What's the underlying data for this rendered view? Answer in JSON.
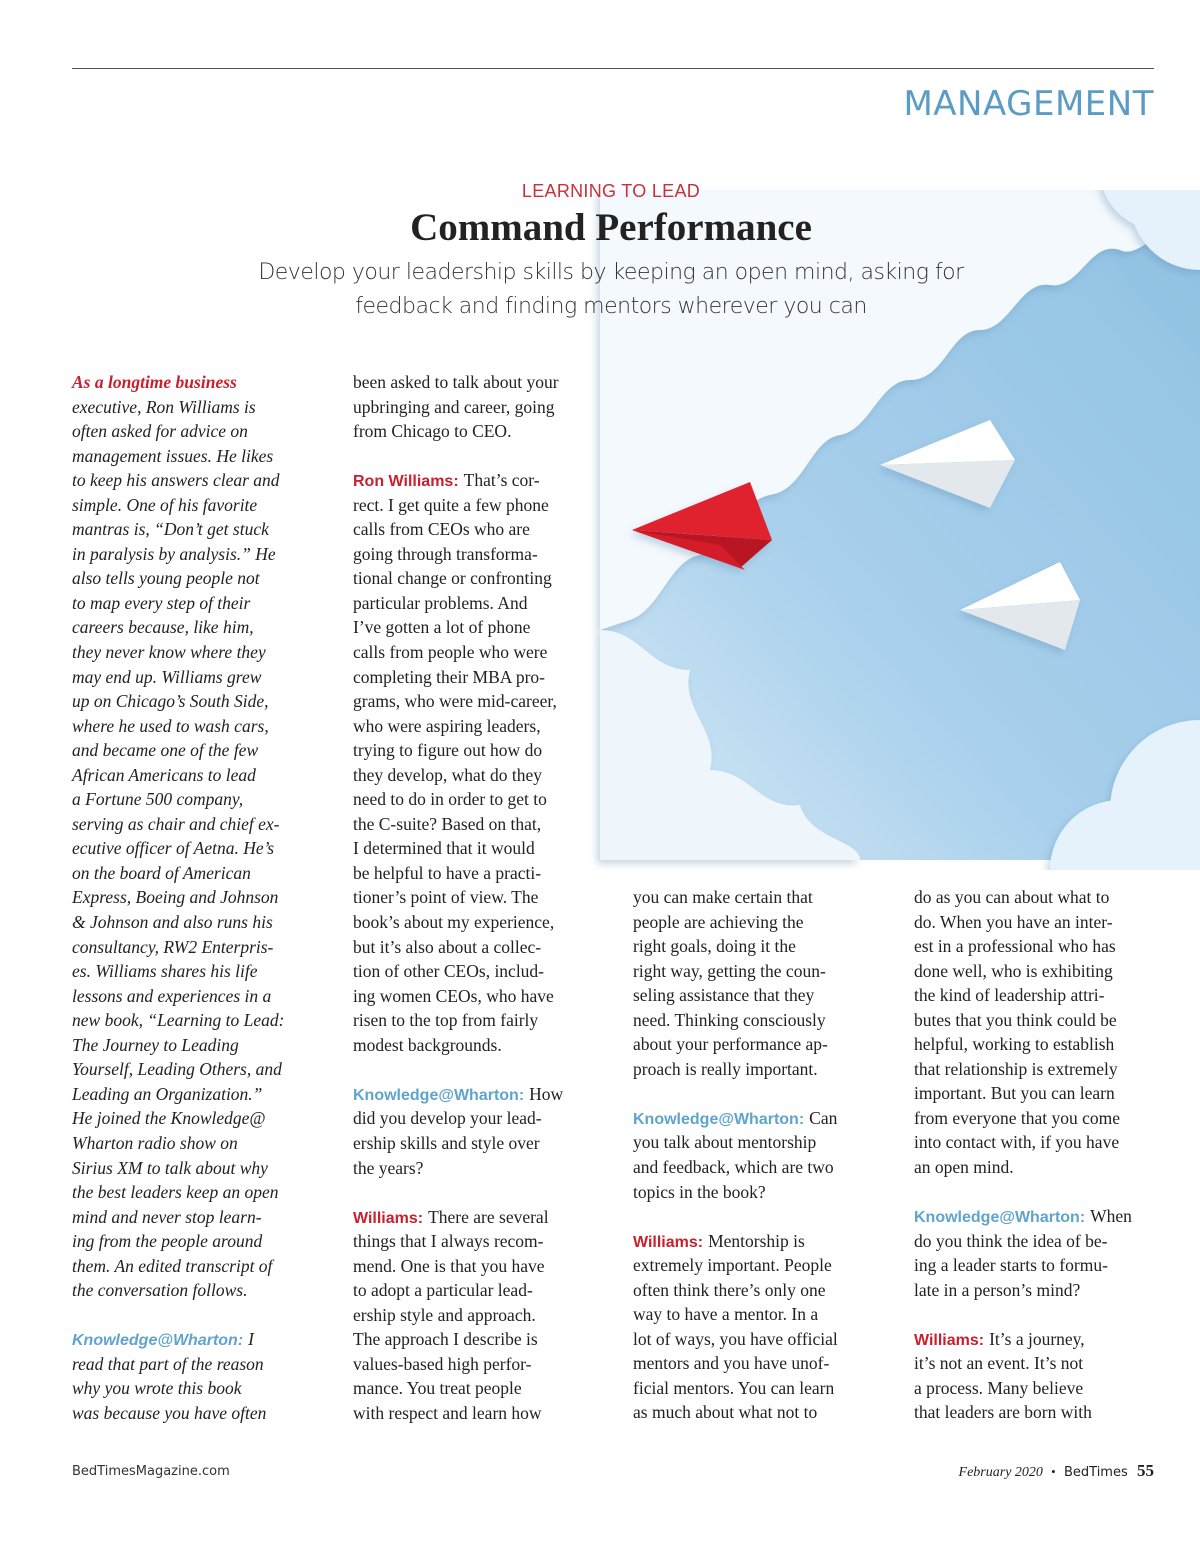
{
  "header": {
    "section": "MANAGEMENT",
    "kicker": "LEARNING TO LEAD",
    "title": "Command Performance",
    "subtitle": [
      "Develop your leadership skills by keeping an open mind, asking for",
      "feedback and finding mentors wherever you can"
    ]
  },
  "columns": [
    {
      "paragraphs": [
        {
          "lead": "As a longtime business",
          "lines": [
            "executive, Ron Williams is",
            "often asked for advice on",
            "management issues. He likes",
            "to keep his answers clear and",
            "simple. One of his favorite",
            "mantras is, “Don’t get stuck",
            "in paralysis by analysis.” He",
            "also tells young people not",
            "to map every step of their",
            "careers because, like him,",
            "they never know where they",
            "may end up. Williams grew",
            "up on Chicago’s South Side,",
            "where he used to wash cars,",
            "and became one of the few",
            "African Americans to lead",
            "a Fortune 500 company,",
            "serving as chair and chief ex-",
            "ecutive officer of Aetna. He’s",
            "on the board of American",
            "Express, Boeing and Johnson",
            "& Johnson and also runs his",
            "consultancy, RW2 Enterpris-",
            "es. Williams shares his life",
            "lessons and experiences in a",
            "new book, “Learning to Lead:",
            "The Journey to Leading",
            "Yourself, Leading Others, and",
            "Leading an Organization.”",
            "He joined the Knowledge@",
            "Wharton radio show on",
            "Sirius XM to talk about why",
            "the best leaders keep an open",
            "mind and never stop learn-",
            "ing from the people around",
            "them. An edited transcript of",
            "the conversation follows."
          ]
        },
        {
          "speaker": "Knowledge@Wharton:",
          "color": "#5fa4cc",
          "lines": [
            "I",
            "read that part of the reason",
            "why you wrote this book",
            "was because you have often"
          ]
        }
      ]
    },
    {
      "paragraphs": [
        {
          "lines": [
            "been asked to talk about your",
            "upbringing and career, going",
            "from Chicago to CEO."
          ]
        },
        {
          "speaker": "Ron Williams:",
          "color": "#c8202e",
          "lines": [
            "That’s cor-",
            "rect. I get quite a few phone",
            "calls from CEOs who are",
            "going through transforma-",
            "tional change or confronting",
            "particular problems. And",
            "I’ve gotten a lot of phone",
            "calls from people who were",
            "completing their MBA pro-",
            "grams, who were mid-career,",
            "who were aspiring leaders,",
            "trying to figure out how do",
            "they develop, what do they",
            "need to do in order to get to",
            "the C-suite? Based on that,",
            "I determined that it would",
            "be helpful to have a practi-",
            "tioner’s point of view. The",
            "book’s about my experience,",
            "but it’s also about a collec-",
            "tion of other CEOs, includ-",
            "ing women CEOs, who have",
            "risen to the top from fairly",
            "modest backgrounds."
          ]
        },
        {
          "speaker": "Knowledge@Wharton:",
          "color": "#5fa4cc",
          "lines": [
            "How",
            "did you develop your lead-",
            "ership skills and style over",
            "the years?"
          ]
        },
        {
          "speaker": "Williams:",
          "color": "#c8202e",
          "lines": [
            "There are several",
            "things that I always recom-",
            "mend. One is that you have",
            "to adopt a particular lead-",
            "ership style and approach.",
            "The approach I describe is",
            "values-based high perfor-",
            "mance. You treat people",
            "with respect and learn how"
          ]
        }
      ]
    },
    {
      "paragraphs": [
        {
          "lines": [
            "you can make certain that",
            "people are achieving the",
            "right goals, doing it the",
            "right way, getting the coun-",
            "seling assistance that they",
            "need. Thinking consciously",
            "about your performance ap-",
            "proach is really important."
          ]
        },
        {
          "speaker": "Knowledge@Wharton:",
          "color": "#5fa4cc",
          "lines": [
            "Can",
            "you talk about mentorship",
            "and feedback, which are two",
            "topics in the book?"
          ]
        },
        {
          "speaker": "Williams:",
          "color": "#c8202e",
          "lines": [
            "Mentorship is",
            "extremely important. People",
            "often think there’s only one",
            "way to have a mentor. In a",
            "lot of ways, you have official",
            "mentors and you have unof-",
            "ficial mentors. You can learn",
            "as much about what not to"
          ]
        }
      ]
    },
    {
      "paragraphs": [
        {
          "lines": [
            "do as you can about what to",
            "do. When you have an inter-",
            "est in a professional who has",
            "done well, who is exhibiting",
            "the kind of leadership attri-",
            "butes that you think could be",
            "helpful, working to establish",
            "that relationship is extremely",
            "important. But you can learn",
            "from everyone that you come",
            "into contact with, if you have",
            "an open mind."
          ]
        },
        {
          "speaker": "Knowledge@Wharton:",
          "color": "#5fa4cc",
          "lines": [
            "When",
            "do you think the idea of be-",
            "ing a leader starts to formu-",
            "late in a person’s mind?"
          ]
        },
        {
          "speaker": "Williams:",
          "color": "#c8202e",
          "lines": [
            "It’s a journey,",
            "it’s not an event. It’s not",
            "a process. Many believe",
            "that leaders are born with"
          ]
        }
      ]
    }
  ],
  "footer": {
    "website": "BedTimesMagazine.com",
    "date": "February 2020",
    "separator": "•",
    "magazine": "BedTimes",
    "page": "55"
  }
}
